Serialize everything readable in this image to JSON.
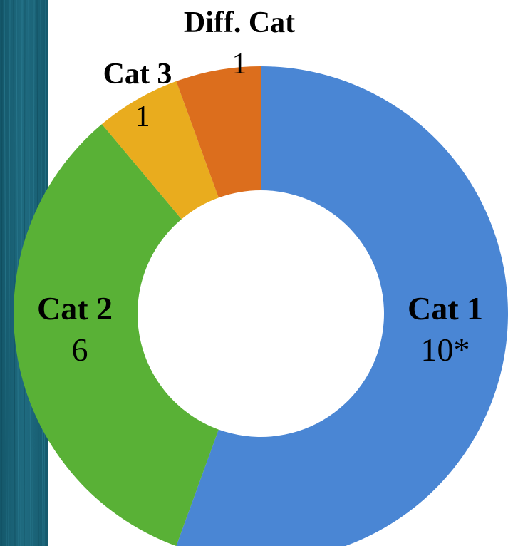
{
  "chart_data": {
    "type": "pie",
    "title": "",
    "categories": [
      "Cat 1",
      "Cat 2",
      "Cat 3",
      "Diff. Cat"
    ],
    "values": [
      10,
      6,
      1,
      1
    ],
    "value_labels": [
      "10*",
      "6",
      "1",
      "1"
    ],
    "colors": [
      "#4a86d4",
      "#59b136",
      "#e9ac1e",
      "#dc6e1d"
    ],
    "style": "donut",
    "start": "12 o'clock",
    "direction": "clockwise"
  },
  "background": {
    "left_strip_color": "#1f6a7e",
    "page_color": "#ffffff"
  }
}
